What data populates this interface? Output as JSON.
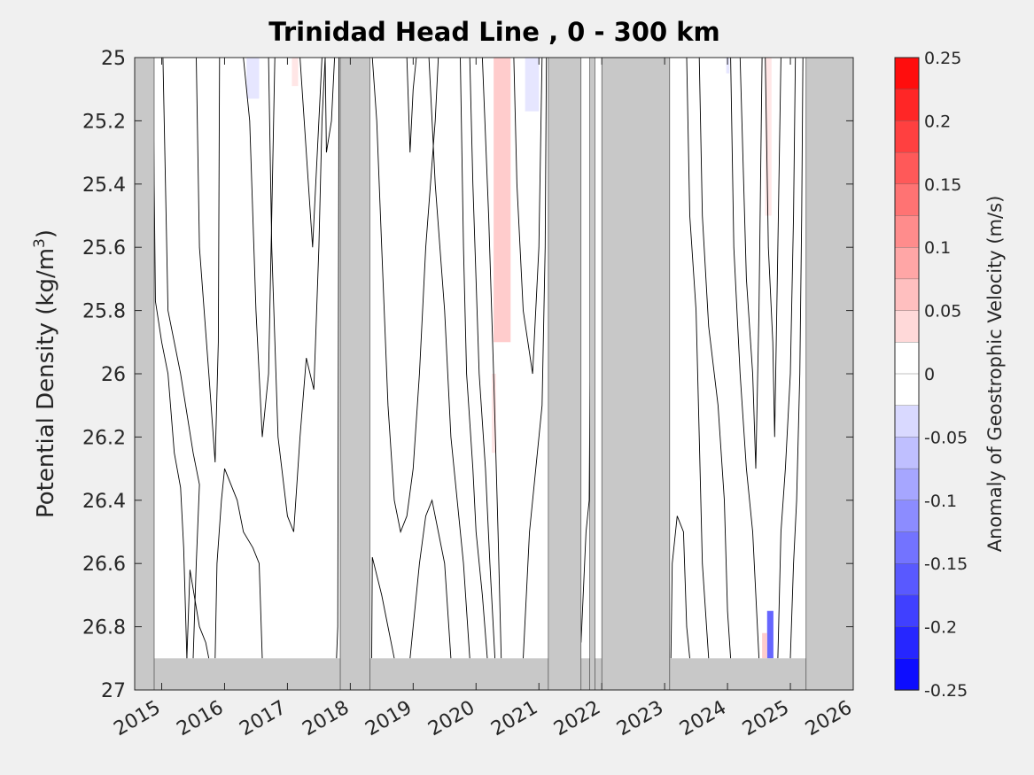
{
  "chart_data": {
    "type": "heatmap",
    "title": "Trinidad Head Line , 0 - 300 km",
    "ylabel_main": "Potential Density (kg/m",
    "ylabel_sup": "3",
    "ylabel_tail": ")",
    "x_ticks": [
      "2015",
      "2016",
      "2017",
      "2018",
      "2019",
      "2020",
      "2021",
      "2022",
      "2023",
      "2024",
      "2025",
      "2026"
    ],
    "xlim": [
      2014.57,
      2026.0
    ],
    "y_ticks": [
      "25",
      "25.2",
      "25.4",
      "25.6",
      "25.8",
      "26",
      "26.2",
      "26.4",
      "26.6",
      "26.8",
      "27"
    ],
    "ylim": [
      25,
      27
    ],
    "y_reversed": true,
    "colorbar": {
      "label": "Anomaly of Geostrophic Velocity (m/s)",
      "ticks": [
        "0.25",
        "0.2",
        "0.15",
        "0.1",
        "0.05",
        "0",
        "-0.05",
        "-0.1",
        "-0.15",
        "-0.2",
        "-0.25"
      ],
      "range": [
        -0.25,
        0.25
      ],
      "levels": 20,
      "colors_top_to_bottom": [
        "#ff0000",
        "#ff1a1a",
        "#ff3333",
        "#ff4d4d",
        "#ff6666",
        "#ff8080",
        "#ff9999",
        "#ffb3b3",
        "#ffcccc",
        "#ffe6e6",
        "#ffffff",
        "#ffffff",
        "#e6e6ff",
        "#ccccff",
        "#b3b3ff",
        "#9999ff",
        "#8080ff",
        "#6666ff",
        "#4d4dff",
        "#3333ff",
        "#1a1aff",
        "#0000ff"
      ]
    },
    "missing_color": "#c8c8c8",
    "no_data_spans": [
      [
        2014.57,
        2014.88
      ],
      [
        2017.84,
        2018.31
      ],
      [
        2021.15,
        2021.67
      ],
      [
        2021.81,
        2021.89
      ],
      [
        2022.0,
        2023.08
      ],
      [
        2025.25,
        2026.0
      ]
    ],
    "no_data_below_density": 26.9,
    "anomaly_patches": [
      {
        "x": [
          2016.35,
          2016.55
        ],
        "y": [
          25.0,
          25.13
        ],
        "value": -0.04
      },
      {
        "x": [
          2017.07,
          2017.17
        ],
        "y": [
          25.0,
          25.09
        ],
        "value": 0.04
      },
      {
        "x": [
          2020.28,
          2020.55
        ],
        "y": [
          25.0,
          25.9
        ],
        "value": 0.05
      },
      {
        "x": [
          2020.25,
          2020.32
        ],
        "y": [
          26.0,
          26.25
        ],
        "value": 0.03
      },
      {
        "x": [
          2020.78,
          2021.0
        ],
        "y": [
          25.0,
          25.17
        ],
        "value": -0.04
      },
      {
        "x": [
          2023.98,
          2024.03
        ],
        "y": [
          25.0,
          25.05
        ],
        "value": -0.04
      },
      {
        "x": [
          2024.6,
          2024.7
        ],
        "y": [
          25.0,
          25.5
        ],
        "value": 0.04
      },
      {
        "x": [
          2024.63,
          2024.73
        ],
        "y": [
          26.75,
          26.9
        ],
        "value": -0.15
      },
      {
        "x": [
          2024.55,
          2024.63
        ],
        "y": [
          26.82,
          26.9
        ],
        "value": 0.05
      }
    ],
    "contour_lines": [
      [
        [
          2014.86,
          25.0
        ],
        [
          2014.9,
          25.77
        ],
        [
          2015.0,
          25.9
        ],
        [
          2015.1,
          26.0
        ],
        [
          2015.2,
          26.25
        ],
        [
          2015.3,
          26.36
        ],
        [
          2015.35,
          26.55
        ],
        [
          2015.4,
          26.9
        ]
      ],
      [
        [
          2015.02,
          25.0
        ],
        [
          2015.1,
          25.8
        ],
        [
          2015.3,
          26.0
        ],
        [
          2015.5,
          26.25
        ],
        [
          2015.6,
          26.35
        ],
        [
          2015.55,
          26.6
        ],
        [
          2015.5,
          26.9
        ]
      ],
      [
        [
          2015.4,
          26.9
        ],
        [
          2015.45,
          26.62
        ],
        [
          2015.6,
          26.8
        ],
        [
          2015.7,
          26.85
        ],
        [
          2015.75,
          26.9
        ]
      ],
      [
        [
          2015.55,
          25.0
        ],
        [
          2015.6,
          25.6
        ],
        [
          2015.75,
          26.0
        ],
        [
          2015.85,
          26.28
        ],
        [
          2015.9,
          25.9
        ],
        [
          2015.92,
          25.0
        ]
      ],
      [
        [
          2015.85,
          26.9
        ],
        [
          2015.88,
          26.6
        ],
        [
          2015.95,
          26.4
        ],
        [
          2016.0,
          26.3
        ],
        [
          2016.2,
          26.4
        ],
        [
          2016.3,
          26.5
        ],
        [
          2016.45,
          26.55
        ],
        [
          2016.55,
          26.6
        ],
        [
          2016.6,
          26.9
        ]
      ],
      [
        [
          2016.3,
          25.0
        ],
        [
          2016.4,
          25.2
        ],
        [
          2016.5,
          25.8
        ],
        [
          2016.6,
          26.2
        ],
        [
          2016.7,
          26.0
        ],
        [
          2016.75,
          25.5
        ],
        [
          2016.8,
          25.0
        ]
      ],
      [
        [
          2016.7,
          25.0
        ],
        [
          2016.75,
          25.6
        ],
        [
          2016.85,
          26.2
        ],
        [
          2017.0,
          26.45
        ],
        [
          2017.1,
          26.5
        ],
        [
          2017.2,
          26.2
        ],
        [
          2017.3,
          25.95
        ],
        [
          2017.42,
          26.05
        ],
        [
          2017.5,
          25.6
        ],
        [
          2017.55,
          25.2
        ],
        [
          2017.6,
          25.0
        ]
      ],
      [
        [
          2017.2,
          25.0
        ],
        [
          2017.3,
          25.3
        ],
        [
          2017.4,
          25.6
        ],
        [
          2017.5,
          25.2
        ],
        [
          2017.55,
          25.0
        ]
      ],
      [
        [
          2017.6,
          25.0
        ],
        [
          2017.62,
          25.3
        ],
        [
          2017.7,
          25.2
        ],
        [
          2017.75,
          25.0
        ]
      ],
      [
        [
          2017.78,
          26.9
        ],
        [
          2017.8,
          26.8
        ],
        [
          2017.82,
          25.0
        ]
      ],
      [
        [
          2018.34,
          26.9
        ],
        [
          2018.35,
          26.58
        ],
        [
          2018.5,
          26.7
        ],
        [
          2018.6,
          26.8
        ],
        [
          2018.7,
          26.9
        ]
      ],
      [
        [
          2018.35,
          25.0
        ],
        [
          2018.42,
          25.2
        ],
        [
          2018.5,
          25.6
        ],
        [
          2018.6,
          26.1
        ],
        [
          2018.7,
          26.4
        ],
        [
          2018.8,
          26.5
        ],
        [
          2018.9,
          26.45
        ],
        [
          2019.0,
          26.3
        ],
        [
          2019.1,
          26.0
        ],
        [
          2019.2,
          25.6
        ],
        [
          2019.35,
          25.2
        ],
        [
          2019.4,
          25.0
        ]
      ],
      [
        [
          2018.9,
          25.0
        ],
        [
          2018.95,
          25.3
        ],
        [
          2019.0,
          25.1
        ],
        [
          2019.05,
          25.0
        ]
      ],
      [
        [
          2018.95,
          26.9
        ],
        [
          2019.0,
          26.8
        ],
        [
          2019.1,
          26.6
        ],
        [
          2019.2,
          26.45
        ],
        [
          2019.3,
          26.4
        ],
        [
          2019.4,
          26.5
        ],
        [
          2019.5,
          26.6
        ],
        [
          2019.6,
          26.9
        ]
      ],
      [
        [
          2019.25,
          25.0
        ],
        [
          2019.35,
          25.4
        ],
        [
          2019.5,
          25.8
        ],
        [
          2019.6,
          26.2
        ],
        [
          2019.7,
          26.4
        ],
        [
          2019.8,
          26.6
        ],
        [
          2019.9,
          26.9
        ]
      ],
      [
        [
          2019.75,
          25.0
        ],
        [
          2019.8,
          25.6
        ],
        [
          2019.85,
          26.0
        ],
        [
          2019.95,
          26.3
        ],
        [
          2020.0,
          26.5
        ],
        [
          2020.1,
          26.7
        ],
        [
          2020.18,
          26.9
        ]
      ],
      [
        [
          2019.9,
          25.0
        ],
        [
          2019.95,
          25.4
        ],
        [
          2020.05,
          26.0
        ],
        [
          2020.15,
          26.3
        ],
        [
          2020.22,
          26.6
        ],
        [
          2020.3,
          26.9
        ]
      ],
      [
        [
          2020.1,
          25.0
        ],
        [
          2020.2,
          25.5
        ],
        [
          2020.28,
          26.0
        ],
        [
          2020.35,
          26.5
        ],
        [
          2020.4,
          26.9
        ]
      ],
      [
        [
          2020.6,
          25.0
        ],
        [
          2020.65,
          25.4
        ],
        [
          2020.75,
          25.8
        ],
        [
          2020.9,
          26.0
        ],
        [
          2021.0,
          25.6
        ],
        [
          2021.05,
          25.0
        ]
      ],
      [
        [
          2020.75,
          26.9
        ],
        [
          2020.85,
          26.5
        ],
        [
          2020.95,
          26.3
        ],
        [
          2021.05,
          26.1
        ],
        [
          2021.1,
          25.6
        ],
        [
          2021.12,
          25.0
        ]
      ],
      [
        [
          2021.67,
          26.85
        ],
        [
          2021.75,
          26.5
        ],
        [
          2021.8,
          26.4
        ],
        [
          2021.85,
          25.0
        ]
      ],
      [
        [
          2023.1,
          26.9
        ],
        [
          2023.12,
          26.6
        ],
        [
          2023.2,
          26.45
        ],
        [
          2023.3,
          26.5
        ],
        [
          2023.35,
          26.8
        ],
        [
          2023.4,
          26.9
        ]
      ],
      [
        [
          2023.35,
          25.0
        ],
        [
          2023.4,
          25.5
        ],
        [
          2023.5,
          25.8
        ],
        [
          2023.55,
          26.2
        ],
        [
          2023.6,
          26.6
        ],
        [
          2023.7,
          26.9
        ]
      ],
      [
        [
          2023.55,
          25.0
        ],
        [
          2023.6,
          25.5
        ],
        [
          2023.7,
          25.85
        ],
        [
          2023.85,
          26.1
        ],
        [
          2023.95,
          26.4
        ],
        [
          2024.0,
          26.75
        ],
        [
          2024.05,
          26.9
        ]
      ],
      [
        [
          2024.05,
          25.0
        ],
        [
          2024.1,
          25.6
        ],
        [
          2024.2,
          26.0
        ],
        [
          2024.3,
          26.3
        ],
        [
          2024.4,
          26.5
        ],
        [
          2024.5,
          26.9
        ]
      ],
      [
        [
          2024.2,
          25.0
        ],
        [
          2024.3,
          25.7
        ],
        [
          2024.4,
          26.0
        ],
        [
          2024.45,
          26.3
        ],
        [
          2024.5,
          25.8
        ],
        [
          2024.55,
          25.0
        ]
      ],
      [
        [
          2024.6,
          25.0
        ],
        [
          2024.65,
          25.6
        ],
        [
          2024.72,
          25.9
        ],
        [
          2024.75,
          26.2
        ],
        [
          2024.8,
          25.6
        ],
        [
          2024.85,
          25.0
        ]
      ],
      [
        [
          2024.8,
          26.9
        ],
        [
          2024.85,
          26.5
        ],
        [
          2024.92,
          26.3
        ],
        [
          2025.0,
          26.0
        ],
        [
          2025.05,
          25.5
        ],
        [
          2025.08,
          25.0
        ]
      ],
      [
        [
          2025.0,
          26.9
        ],
        [
          2025.05,
          26.6
        ],
        [
          2025.1,
          26.4
        ],
        [
          2025.15,
          26.0
        ],
        [
          2025.18,
          25.5
        ],
        [
          2025.2,
          25.0
        ]
      ]
    ]
  }
}
